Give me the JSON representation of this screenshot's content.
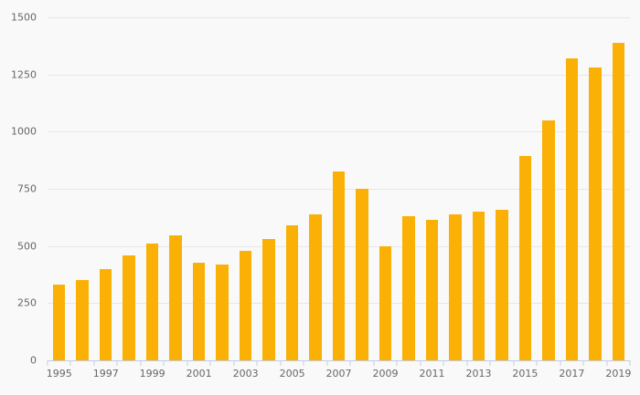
{
  "chart_data": {
    "type": "bar",
    "title": "",
    "xlabel": "",
    "ylabel": "",
    "categories": [
      1995,
      1996,
      1997,
      1998,
      1999,
      2000,
      2001,
      2002,
      2003,
      2004,
      2005,
      2006,
      2007,
      2008,
      2009,
      2010,
      2011,
      2012,
      2013,
      2014,
      2015,
      2016,
      2017,
      2018,
      2019
    ],
    "values": [
      330,
      350,
      400,
      460,
      510,
      545,
      425,
      420,
      480,
      530,
      590,
      640,
      825,
      750,
      500,
      630,
      615,
      640,
      650,
      660,
      895,
      1050,
      1320,
      1280,
      1390
    ],
    "ylim": [
      0,
      1500
    ],
    "y_ticks": [
      0,
      250,
      500,
      750,
      1000,
      1250,
      1500
    ],
    "x_tick_labels": [
      "1995",
      "1997",
      "1999",
      "2001",
      "2003",
      "2005",
      "2007",
      "2009",
      "2011",
      "2013",
      "2015",
      "2017",
      "2019"
    ],
    "x_label_every": 2,
    "grid": true,
    "legend": false,
    "colors": {
      "bar": "#fab005",
      "background": "#f9f9f9",
      "gridline": "#e7e7e7",
      "axis": "#c2cde2",
      "labels": "#666666"
    }
  }
}
